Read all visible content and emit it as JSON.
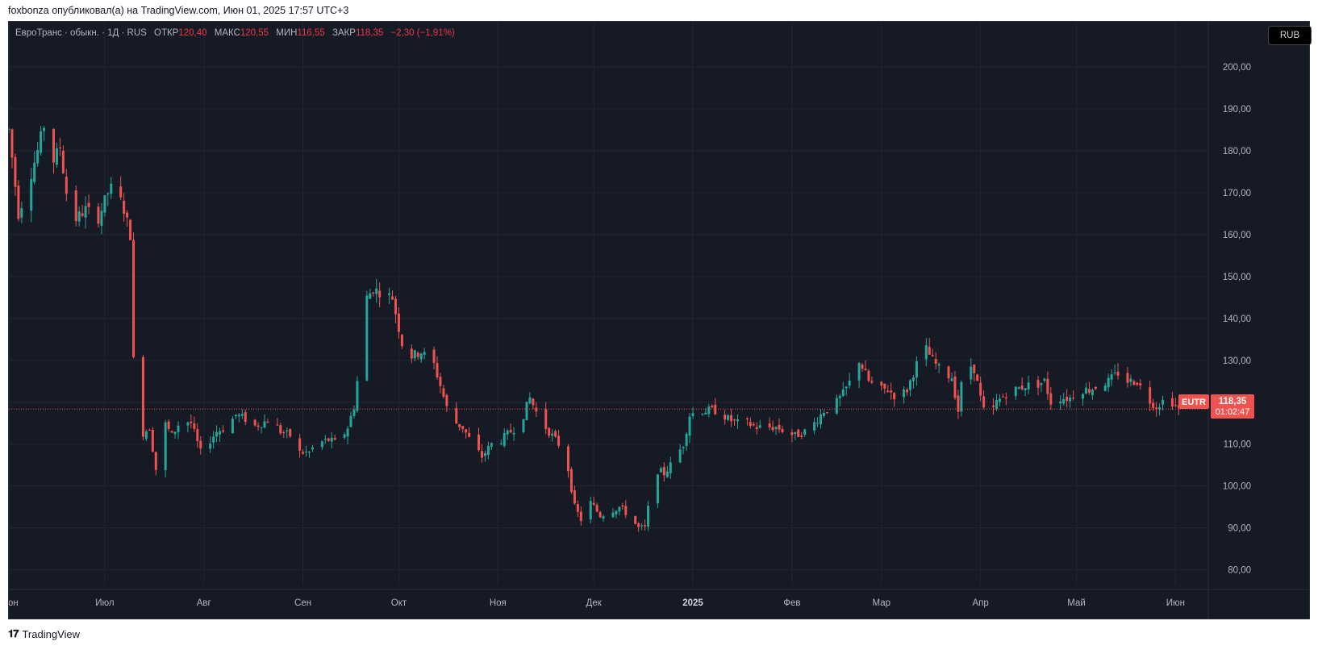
{
  "caption": "foxbonza опубликовал(а) на TradingView.com, Июн 01, 2025 17:57 UTC+3",
  "legend": {
    "title": "ЕвроТранс · обыкн. · 1Д · RUS",
    "open_label": "ОТКР",
    "open_value": "120,40",
    "high_label": "МАКС",
    "high_value": "120,55",
    "low_label": "МИН",
    "low_value": "116,55",
    "close_label": "ЗАКР",
    "close_value": "118,35",
    "change": "−2,30 (−1,91%)"
  },
  "currency_button": "RUB",
  "price_tag": {
    "symbol": "EUTR",
    "price": "118,35",
    "countdown": "01:02:47"
  },
  "footer": {
    "logo_mark": "𝟏𝟕",
    "brand": "TradingView"
  },
  "colors": {
    "up": "#26a69a",
    "down": "#ef5350",
    "background": "#161a25",
    "grid": "#232733",
    "axis_text": "#b2b5be"
  },
  "chart_data": {
    "type": "candlestick",
    "ylim": [
      78,
      205
    ],
    "y_ticks": [
      "200,00",
      "190,00",
      "180,00",
      "170,00",
      "160,00",
      "150,00",
      "140,00",
      "130,00",
      "120,00",
      "110,00",
      "100,00",
      "90,00",
      "80,00"
    ],
    "y_tick_values": [
      200,
      190,
      180,
      170,
      160,
      150,
      140,
      130,
      120,
      110,
      100,
      90,
      80
    ],
    "x_labels": [
      {
        "label": "Июн",
        "day": 0
      },
      {
        "label": "Июл",
        "day": 30
      },
      {
        "label": "Авг",
        "day": 61
      },
      {
        "label": "Сен",
        "day": 92
      },
      {
        "label": "Окт",
        "day": 122
      },
      {
        "label": "Ноя",
        "day": 153
      },
      {
        "label": "Дек",
        "day": 183
      },
      {
        "label": "2025",
        "day": 214,
        "bold": true
      },
      {
        "label": "Фев",
        "day": 245
      },
      {
        "label": "Мар",
        "day": 273
      },
      {
        "label": "Апр",
        "day": 304
      },
      {
        "label": "Май",
        "day": 334
      },
      {
        "label": "Июн",
        "day": 365
      }
    ],
    "x_range_days": [
      0,
      375
    ],
    "last_price": 118.35,
    "anchors": [
      [
        0,
        185
      ],
      [
        3,
        165
      ],
      [
        6,
        172
      ],
      [
        9,
        180
      ],
      [
        11,
        186
      ],
      [
        13,
        176
      ],
      [
        16,
        181
      ],
      [
        18,
        170
      ],
      [
        20,
        163
      ],
      [
        24,
        166
      ],
      [
        28,
        164
      ],
      [
        31,
        170
      ],
      [
        33,
        172
      ],
      [
        36,
        166
      ],
      [
        38,
        160
      ],
      [
        39,
        130
      ],
      [
        41,
        112
      ],
      [
        44,
        114
      ],
      [
        46,
        104
      ],
      [
        48,
        116
      ],
      [
        51,
        112
      ],
      [
        54,
        116
      ],
      [
        57,
        115
      ],
      [
        60,
        108
      ],
      [
        63,
        111
      ],
      [
        65,
        113
      ],
      [
        68,
        114
      ],
      [
        71,
        117
      ],
      [
        74,
        116
      ],
      [
        76,
        114
      ],
      [
        79,
        115
      ],
      [
        82,
        116
      ],
      [
        85,
        113
      ],
      [
        88,
        112
      ],
      [
        91,
        108
      ],
      [
        94,
        108
      ],
      [
        96,
        110
      ],
      [
        100,
        111
      ],
      [
        103,
        110
      ],
      [
        106,
        114
      ],
      [
        108,
        119
      ],
      [
        110,
        131
      ],
      [
        112,
        145
      ],
      [
        114,
        147
      ],
      [
        117,
        146
      ],
      [
        120,
        145
      ],
      [
        123,
        134
      ],
      [
        126,
        131
      ],
      [
        129,
        132
      ],
      [
        133,
        129
      ],
      [
        135,
        124
      ],
      [
        138,
        116
      ],
      [
        142,
        114
      ],
      [
        145,
        110
      ],
      [
        148,
        107
      ],
      [
        151,
        110
      ],
      [
        154,
        111
      ],
      [
        157,
        113
      ],
      [
        160,
        115
      ],
      [
        163,
        121
      ],
      [
        166,
        116
      ],
      [
        169,
        113
      ],
      [
        172,
        110
      ],
      [
        175,
        104
      ],
      [
        177,
        95
      ],
      [
        179,
        92
      ],
      [
        182,
        96
      ],
      [
        185,
        93
      ],
      [
        188,
        94
      ],
      [
        191,
        95
      ],
      [
        194,
        93
      ],
      [
        197,
        90
      ],
      [
        199,
        90
      ],
      [
        202,
        104
      ],
      [
        205,
        103
      ],
      [
        208,
        106
      ],
      [
        211,
        110
      ],
      [
        213,
        117
      ],
      [
        216,
        118
      ],
      [
        219,
        118
      ],
      [
        222,
        118
      ],
      [
        225,
        116
      ],
      [
        228,
        115
      ],
      [
        231,
        115
      ],
      [
        234,
        114
      ],
      [
        237,
        114
      ],
      [
        240,
        114
      ],
      [
        243,
        113
      ],
      [
        246,
        112
      ],
      [
        249,
        113
      ],
      [
        252,
        115
      ],
      [
        255,
        118
      ],
      [
        258,
        119
      ],
      [
        261,
        122
      ],
      [
        264,
        126
      ],
      [
        266,
        130
      ],
      [
        269,
        125
      ],
      [
        272,
        123
      ],
      [
        275,
        123
      ],
      [
        278,
        121
      ],
      [
        281,
        123
      ],
      [
        284,
        129
      ],
      [
        286,
        134
      ],
      [
        289,
        130
      ],
      [
        292,
        127
      ],
      [
        295,
        126
      ],
      [
        297,
        118
      ],
      [
        299,
        130
      ],
      [
        302,
        128
      ],
      [
        304,
        121
      ],
      [
        306,
        115
      ],
      [
        309,
        120
      ],
      [
        312,
        122
      ],
      [
        315,
        123
      ],
      [
        318,
        124
      ],
      [
        321,
        124
      ],
      [
        324,
        125
      ],
      [
        326,
        120
      ],
      [
        329,
        121
      ],
      [
        332,
        121
      ],
      [
        335,
        123
      ],
      [
        338,
        123
      ],
      [
        341,
        124
      ],
      [
        344,
        125
      ],
      [
        347,
        127
      ],
      [
        350,
        125
      ],
      [
        353,
        125
      ],
      [
        356,
        121
      ],
      [
        359,
        119
      ],
      [
        362,
        121
      ],
      [
        364,
        120
      ],
      [
        366,
        118.35
      ]
    ]
  }
}
